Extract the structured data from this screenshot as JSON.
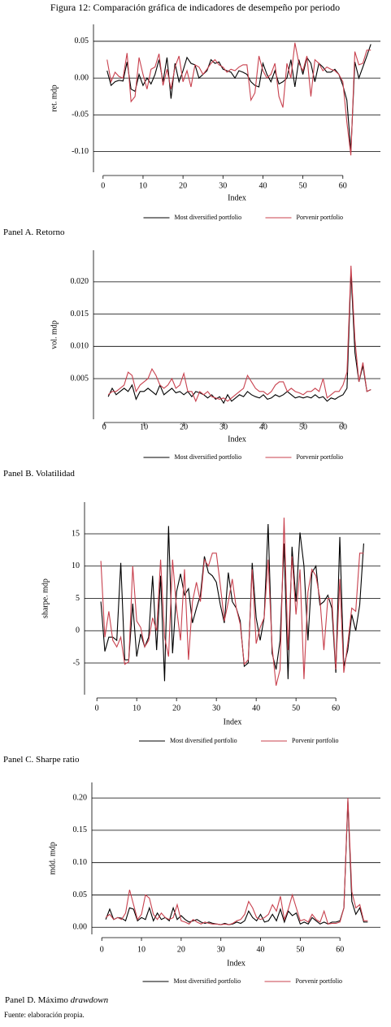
{
  "title": "Figura 12: Comparación gráfica de indicadores de desempeño por periodo",
  "source": "Fuente: elaboración propia.",
  "chart_data": [
    {
      "type": "line",
      "caption": "Panel A. Retorno",
      "xlabel": "Index",
      "ylabel": "ret. mdp",
      "grid": true,
      "x": [
        1,
        2,
        3,
        4,
        5,
        6,
        7,
        8,
        9,
        10,
        11,
        12,
        13,
        14,
        15,
        16,
        17,
        18,
        19,
        20,
        21,
        22,
        23,
        24,
        25,
        26,
        27,
        28,
        29,
        30,
        31,
        32,
        33,
        34,
        35,
        36,
        37,
        38,
        39,
        40,
        41,
        42,
        43,
        44,
        45,
        46,
        47,
        48,
        49,
        50,
        51,
        52,
        53,
        54,
        55,
        56,
        57,
        58,
        59,
        60,
        61,
        62,
        63,
        64,
        65,
        66,
        67
      ],
      "xlim": [
        -2.4,
        69.4
      ],
      "xticks": [
        0,
        10,
        20,
        30,
        40,
        50,
        60
      ],
      "ylim": [
        -0.128,
        0.073
      ],
      "yticks": [
        0.05,
        {
          "value": 0,
          "label": "0.00"
        },
        -0.05,
        {
          "value": -0.1,
          "label": "-0.10"
        }
      ],
      "series": [
        {
          "name": "Most diversified portfolio",
          "color": "#000000",
          "values": [
            0.01,
            -0.01,
            -0.005,
            -0.003,
            -0.004,
            0.022,
            -0.015,
            -0.018,
            0.005,
            -0.01,
            0.0,
            -0.008,
            0.005,
            0.025,
            -0.005,
            0.028,
            -0.028,
            0.02,
            -0.005,
            0.01,
            0.028,
            0.02,
            0.018,
            0.0,
            0.005,
            0.01,
            0.025,
            0.02,
            0.022,
            0.012,
            0.01,
            0.008,
            0.0,
            0.01,
            0.008,
            0.005,
            -0.005,
            -0.01,
            -0.012,
            0.02,
            0.005,
            -0.005,
            0.01,
            -0.008,
            -0.005,
            0.0,
            0.025,
            -0.012,
            0.025,
            0.005,
            0.028,
            0.02,
            -0.005,
            0.02,
            0.015,
            0.008,
            0.008,
            0.012,
            0.005,
            -0.01,
            -0.03,
            -0.1,
            0.022,
            0.0,
            0.015,
            0.03,
            0.046
          ]
        },
        {
          "name": "Porvenir portfolio",
          "color": "#c8414e",
          "values": [
            0.025,
            -0.005,
            0.008,
            0.002,
            0.0,
            0.034,
            -0.032,
            -0.025,
            0.028,
            0.005,
            -0.015,
            0.012,
            0.015,
            0.033,
            -0.01,
            0.012,
            -0.015,
            0.015,
            0.03,
            -0.005,
            0.01,
            -0.012,
            0.018,
            0.015,
            0.005,
            0.012,
            0.02,
            0.025,
            0.018,
            0.015,
            0.008,
            0.012,
            0.01,
            0.015,
            0.018,
            0.018,
            -0.03,
            -0.02,
            0.03,
            0.01,
            0.0,
            0.005,
            0.02,
            -0.025,
            -0.04,
            0.02,
            0.0,
            0.048,
            0.02,
            0.01,
            0.03,
            -0.025,
            0.025,
            0.02,
            0.01,
            0.015,
            0.012,
            0.01,
            0.005,
            -0.005,
            -0.06,
            -0.105,
            0.036,
            0.018,
            0.02,
            0.038,
            0.038
          ]
        }
      ]
    },
    {
      "type": "line",
      "caption": "Panel B. Volatilidad",
      "xlabel": "Index",
      "ylabel": "vol. mdp",
      "grid": true,
      "x": [
        1,
        2,
        3,
        4,
        5,
        6,
        7,
        8,
        9,
        10,
        11,
        12,
        13,
        14,
        15,
        16,
        17,
        18,
        19,
        20,
        21,
        22,
        23,
        24,
        25,
        26,
        27,
        28,
        29,
        30,
        31,
        32,
        33,
        34,
        35,
        36,
        37,
        38,
        39,
        40,
        41,
        42,
        43,
        44,
        45,
        46,
        47,
        48,
        49,
        50,
        51,
        52,
        53,
        54,
        55,
        56,
        57,
        58,
        59,
        60,
        61,
        62,
        63,
        64,
        65,
        66,
        67
      ],
      "xlim": [
        -2.7,
        69.4
      ],
      "xticks": [
        0,
        10,
        20,
        30,
        40,
        50,
        60
      ],
      "ylim": [
        -0.0013,
        0.0249
      ],
      "yticks": [
        {
          "value": 0.02,
          "label": "0.020"
        },
        0.015,
        {
          "value": 0.01,
          "label": "0.010"
        },
        0.005
      ],
      "series": [
        {
          "name": "Most diversified portfolio",
          "color": "#000000",
          "values": [
            0.0022,
            0.0035,
            0.0025,
            0.003,
            0.0035,
            0.003,
            0.004,
            0.0018,
            0.003,
            0.003,
            0.0035,
            0.003,
            0.0025,
            0.004,
            0.0025,
            0.003,
            0.0035,
            0.0028,
            0.003,
            0.0025,
            0.003,
            0.0022,
            0.003,
            0.0028,
            0.0025,
            0.002,
            0.0025,
            0.0018,
            0.0022,
            0.0012,
            0.0025,
            0.0015,
            0.002,
            0.0025,
            0.0022,
            0.003,
            0.0025,
            0.0022,
            0.002,
            0.0025,
            0.0018,
            0.002,
            0.0025,
            0.0022,
            0.0025,
            0.003,
            0.0025,
            0.002,
            0.0022,
            0.002,
            0.0022,
            0.002,
            0.0025,
            0.002,
            0.0022,
            0.0015,
            0.002,
            0.0018,
            0.0022,
            0.0025,
            0.0035,
            0.0215,
            0.009,
            0.0045,
            0.007,
            0.003,
            0.0033
          ]
        },
        {
          "name": "Porvenir portfolio",
          "color": "#c8414e",
          "values": [
            0.0025,
            0.003,
            0.003,
            0.0035,
            0.004,
            0.006,
            0.0055,
            0.003,
            0.004,
            0.0045,
            0.005,
            0.0065,
            0.0055,
            0.004,
            0.0035,
            0.004,
            0.005,
            0.0035,
            0.004,
            0.0058,
            0.003,
            0.003,
            0.0015,
            0.003,
            0.0025,
            0.003,
            0.0022,
            0.002,
            0.0018,
            0.002,
            0.0015,
            0.002,
            0.0025,
            0.003,
            0.0035,
            0.0055,
            0.0045,
            0.0035,
            0.003,
            0.003,
            0.0025,
            0.003,
            0.004,
            0.0045,
            0.0045,
            0.003,
            0.0035,
            0.003,
            0.0028,
            0.0025,
            0.003,
            0.003,
            0.0035,
            0.003,
            0.005,
            0.002,
            0.0025,
            0.003,
            0.003,
            0.004,
            0.006,
            0.0225,
            0.011,
            0.0045,
            0.0075,
            0.003,
            0.0033
          ]
        }
      ]
    },
    {
      "type": "line",
      "caption": "Panel C. Sharpe ratio",
      "xlabel": "Index",
      "ylabel": "sharpe. mdp",
      "grid": true,
      "x": [
        1,
        2,
        3,
        4,
        5,
        6,
        7,
        8,
        9,
        10,
        11,
        12,
        13,
        14,
        15,
        16,
        17,
        18,
        19,
        20,
        21,
        22,
        23,
        24,
        25,
        26,
        27,
        28,
        29,
        30,
        31,
        32,
        33,
        34,
        35,
        36,
        37,
        38,
        39,
        40,
        41,
        42,
        43,
        44,
        45,
        46,
        47,
        48,
        49,
        50,
        51,
        52,
        53,
        54,
        55,
        56,
        57,
        58,
        59,
        60,
        61,
        62,
        63,
        64,
        65,
        66,
        67
      ],
      "xlim": [
        -3.1,
        71.2
      ],
      "xticks": [
        0,
        10,
        20,
        30,
        40,
        50,
        60
      ],
      "ylim": [
        -9.9,
        19.9
      ],
      "yticks": [
        15,
        10,
        5,
        0,
        -5
      ],
      "series": [
        {
          "name": "Most diversified portfolio",
          "color": "#000000",
          "values": [
            4.5,
            -3.2,
            -1.0,
            -1.0,
            -1.5,
            10.5,
            -4.5,
            -4.5,
            4.2,
            -4.0,
            -0.5,
            -2.5,
            -1.0,
            8.5,
            -3.0,
            8.5,
            -7.8,
            16.2,
            -3.5,
            6.0,
            8.8,
            5.5,
            6.5,
            1.2,
            3.5,
            5.5,
            11.5,
            9.0,
            8.5,
            7.5,
            4.0,
            1.2,
            9.0,
            4.5,
            3.5,
            1.5,
            -5.5,
            -5.0,
            10.5,
            2.0,
            -1.5,
            2.0,
            16.5,
            -3.5,
            -6.0,
            -1.5,
            13.5,
            -7.5,
            13.0,
            4.5,
            15.2,
            10.0,
            -1.5,
            9.0,
            10.0,
            4.0,
            4.5,
            5.5,
            3.5,
            -6.5,
            14.5,
            -5.5,
            -3.0,
            2.5,
            0.0,
            4.0,
            13.5
          ]
        },
        {
          "name": "Porvenir portfolio",
          "color": "#c8414e",
          "values": [
            10.8,
            -1.0,
            3.0,
            -1.5,
            -2.5,
            -1.0,
            -5.2,
            -4.8,
            10.0,
            1.5,
            0.5,
            -2.5,
            -1.5,
            2.0,
            0.0,
            11.0,
            -1.0,
            -4.0,
            11.0,
            3.5,
            -1.5,
            9.5,
            -4.5,
            4.5,
            7.5,
            4.5,
            11.0,
            10.0,
            12.0,
            12.0,
            7.0,
            1.5,
            4.5,
            8.0,
            3.5,
            1.0,
            -5.2,
            -4.5,
            9.5,
            -2.0,
            0.5,
            2.0,
            11.0,
            -2.5,
            -8.5,
            -6.0,
            17.5,
            -3.0,
            11.5,
            2.5,
            9.5,
            -7.5,
            6.0,
            9.5,
            8.5,
            5.0,
            -3.0,
            5.0,
            5.0,
            -6.0,
            8.0,
            -6.5,
            -2.0,
            3.5,
            3.0,
            12.0,
            12.0
          ]
        }
      ]
    },
    {
      "type": "line",
      "caption": "Panel D. Máximo ",
      "caption_italic": "drawdown",
      "xlabel": "Index",
      "ylabel": "mdd. mdp",
      "grid": true,
      "x": [
        1,
        2,
        3,
        4,
        5,
        6,
        7,
        8,
        9,
        10,
        11,
        12,
        13,
        14,
        15,
        16,
        17,
        18,
        19,
        20,
        21,
        22,
        23,
        24,
        25,
        26,
        27,
        28,
        29,
        30,
        31,
        32,
        33,
        34,
        35,
        36,
        37,
        38,
        39,
        40,
        41,
        42,
        43,
        44,
        45,
        46,
        47,
        48,
        49,
        50,
        51,
        52,
        53,
        54,
        55,
        56,
        57,
        58,
        59,
        60,
        61,
        62,
        63,
        64,
        65,
        66,
        67
      ],
      "xlim": [
        -2.5,
        70.2
      ],
      "xticks": [
        0,
        10,
        20,
        30,
        40,
        50,
        60
      ],
      "ylim": [
        -0.011,
        0.224
      ],
      "yticks": [
        {
          "value": 0.2,
          "label": "0.20"
        },
        0.15,
        {
          "value": 0.1,
          "label": "0.10"
        },
        0.05,
        {
          "value": 0,
          "label": "0.00"
        }
      ],
      "series": [
        {
          "name": "Most diversified portfolio",
          "color": "#000000",
          "values": [
            0.012,
            0.028,
            0.012,
            0.015,
            0.014,
            0.01,
            0.03,
            0.028,
            0.01,
            0.015,
            0.012,
            0.03,
            0.01,
            0.022,
            0.012,
            0.015,
            0.01,
            0.03,
            0.012,
            0.018,
            0.012,
            0.008,
            0.01,
            0.012,
            0.008,
            0.006,
            0.008,
            0.006,
            0.005,
            0.004,
            0.006,
            0.004,
            0.005,
            0.008,
            0.006,
            0.01,
            0.025,
            0.015,
            0.01,
            0.02,
            0.008,
            0.01,
            0.02,
            0.01,
            0.028,
            0.008,
            0.025,
            0.018,
            0.022,
            0.005,
            0.008,
            0.005,
            0.015,
            0.01,
            0.005,
            0.008,
            0.005,
            0.008,
            0.008,
            0.01,
            0.03,
            0.195,
            0.04,
            0.02,
            0.03,
            0.008,
            0.008
          ]
        },
        {
          "name": "Porvenir portfolio",
          "color": "#c8414e",
          "values": [
            0.015,
            0.02,
            0.012,
            0.015,
            0.012,
            0.022,
            0.058,
            0.035,
            0.012,
            0.02,
            0.05,
            0.045,
            0.02,
            0.012,
            0.022,
            0.015,
            0.012,
            0.015,
            0.035,
            0.01,
            0.008,
            0.005,
            0.012,
            0.008,
            0.005,
            0.008,
            0.006,
            0.005,
            0.005,
            0.004,
            0.005,
            0.004,
            0.006,
            0.01,
            0.012,
            0.02,
            0.04,
            0.03,
            0.015,
            0.012,
            0.015,
            0.02,
            0.035,
            0.025,
            0.048,
            0.012,
            0.028,
            0.05,
            0.03,
            0.01,
            0.012,
            0.008,
            0.02,
            0.012,
            0.008,
            0.025,
            0.005,
            0.006,
            0.006,
            0.008,
            0.03,
            0.2,
            0.055,
            0.03,
            0.035,
            0.01,
            0.01
          ]
        }
      ]
    }
  ]
}
